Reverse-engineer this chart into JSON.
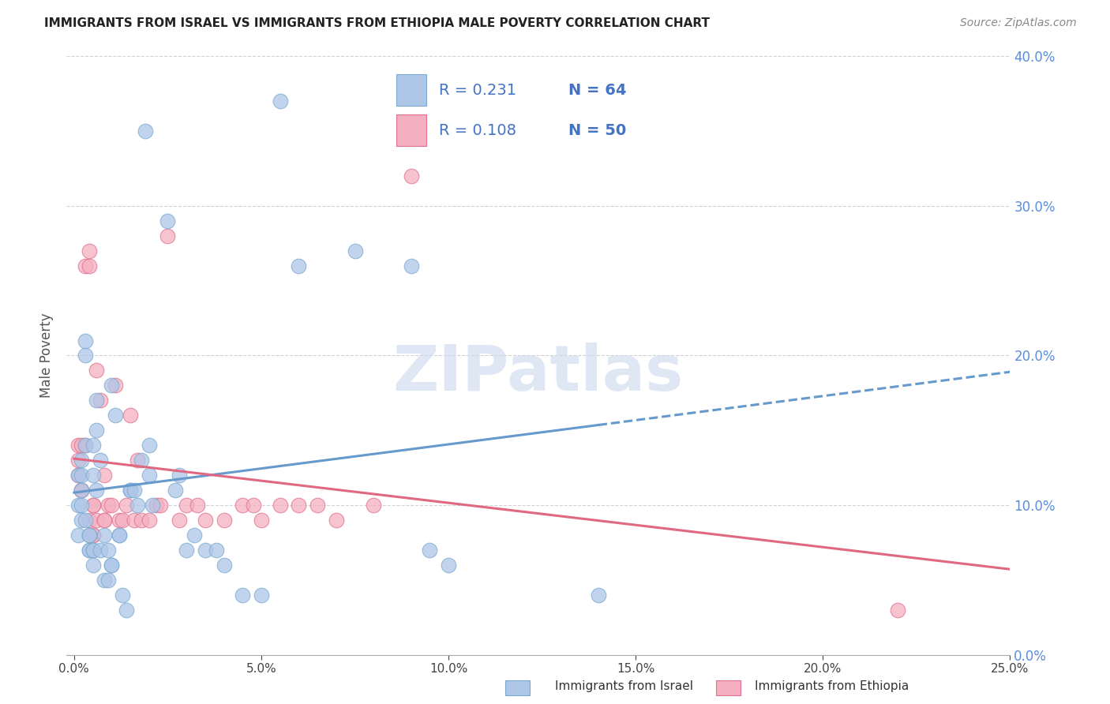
{
  "title": "IMMIGRANTS FROM ISRAEL VS IMMIGRANTS FROM ETHIOPIA MALE POVERTY CORRELATION CHART",
  "source": "Source: ZipAtlas.com",
  "ylabel_left": "Male Poverty",
  "legend_israel": "Immigrants from Israel",
  "legend_ethiopia": "Immigrants from Ethiopia",
  "R_israel": 0.231,
  "N_israel": 64,
  "R_ethiopia": 0.108,
  "N_ethiopia": 50,
  "color_israel": "#aec6e8",
  "color_ethiopia": "#f4afc0",
  "edge_israel": "#7aaad0",
  "edge_ethiopia": "#e07090",
  "trend_israel": "#6699cc",
  "trend_ethiopia": "#e06880",
  "right_axis_color": "#5b8dd9",
  "text_color_blue": "#4472c4",
  "watermark": "ZIPatlas",
  "xlim": [
    -0.002,
    0.25
  ],
  "ylim": [
    0.0,
    0.4
  ],
  "xticks": [
    0.0,
    0.05,
    0.1,
    0.15,
    0.2,
    0.25
  ],
  "yticks": [
    0.0,
    0.1,
    0.2,
    0.3,
    0.4
  ],
  "israel_x": [
    0.001,
    0.001,
    0.001,
    0.002,
    0.002,
    0.002,
    0.002,
    0.002,
    0.003,
    0.003,
    0.003,
    0.003,
    0.004,
    0.004,
    0.004,
    0.004,
    0.005,
    0.005,
    0.005,
    0.005,
    0.005,
    0.006,
    0.006,
    0.006,
    0.007,
    0.007,
    0.008,
    0.008,
    0.009,
    0.009,
    0.01,
    0.01,
    0.01,
    0.011,
    0.012,
    0.012,
    0.013,
    0.014,
    0.015,
    0.015,
    0.016,
    0.017,
    0.018,
    0.019,
    0.02,
    0.02,
    0.021,
    0.025,
    0.027,
    0.028,
    0.03,
    0.032,
    0.035,
    0.038,
    0.04,
    0.045,
    0.05,
    0.055,
    0.06,
    0.075,
    0.09,
    0.095,
    0.1,
    0.14
  ],
  "israel_y": [
    0.08,
    0.1,
    0.12,
    0.12,
    0.11,
    0.1,
    0.09,
    0.13,
    0.09,
    0.14,
    0.2,
    0.21,
    0.07,
    0.07,
    0.08,
    0.08,
    0.06,
    0.07,
    0.07,
    0.12,
    0.14,
    0.15,
    0.17,
    0.11,
    0.13,
    0.07,
    0.05,
    0.08,
    0.05,
    0.07,
    0.06,
    0.06,
    0.18,
    0.16,
    0.08,
    0.08,
    0.04,
    0.03,
    0.11,
    0.11,
    0.11,
    0.1,
    0.13,
    0.35,
    0.12,
    0.14,
    0.1,
    0.29,
    0.11,
    0.12,
    0.07,
    0.08,
    0.07,
    0.07,
    0.06,
    0.04,
    0.04,
    0.37,
    0.26,
    0.27,
    0.26,
    0.07,
    0.06,
    0.04
  ],
  "ethiopia_x": [
    0.001,
    0.001,
    0.001,
    0.002,
    0.002,
    0.002,
    0.003,
    0.003,
    0.004,
    0.004,
    0.004,
    0.005,
    0.005,
    0.005,
    0.005,
    0.006,
    0.006,
    0.007,
    0.008,
    0.008,
    0.008,
    0.009,
    0.01,
    0.011,
    0.012,
    0.013,
    0.014,
    0.015,
    0.016,
    0.017,
    0.018,
    0.02,
    0.022,
    0.023,
    0.025,
    0.028,
    0.03,
    0.033,
    0.035,
    0.04,
    0.045,
    0.048,
    0.05,
    0.055,
    0.06,
    0.065,
    0.07,
    0.08,
    0.09,
    0.22
  ],
  "ethiopia_y": [
    0.12,
    0.13,
    0.14,
    0.11,
    0.11,
    0.14,
    0.14,
    0.26,
    0.26,
    0.27,
    0.09,
    0.1,
    0.1,
    0.08,
    0.08,
    0.09,
    0.19,
    0.17,
    0.09,
    0.09,
    0.12,
    0.1,
    0.1,
    0.18,
    0.09,
    0.09,
    0.1,
    0.16,
    0.09,
    0.13,
    0.09,
    0.09,
    0.1,
    0.1,
    0.28,
    0.09,
    0.1,
    0.1,
    0.09,
    0.09,
    0.1,
    0.1,
    0.09,
    0.1,
    0.1,
    0.1,
    0.09,
    0.1,
    0.32,
    0.03
  ]
}
